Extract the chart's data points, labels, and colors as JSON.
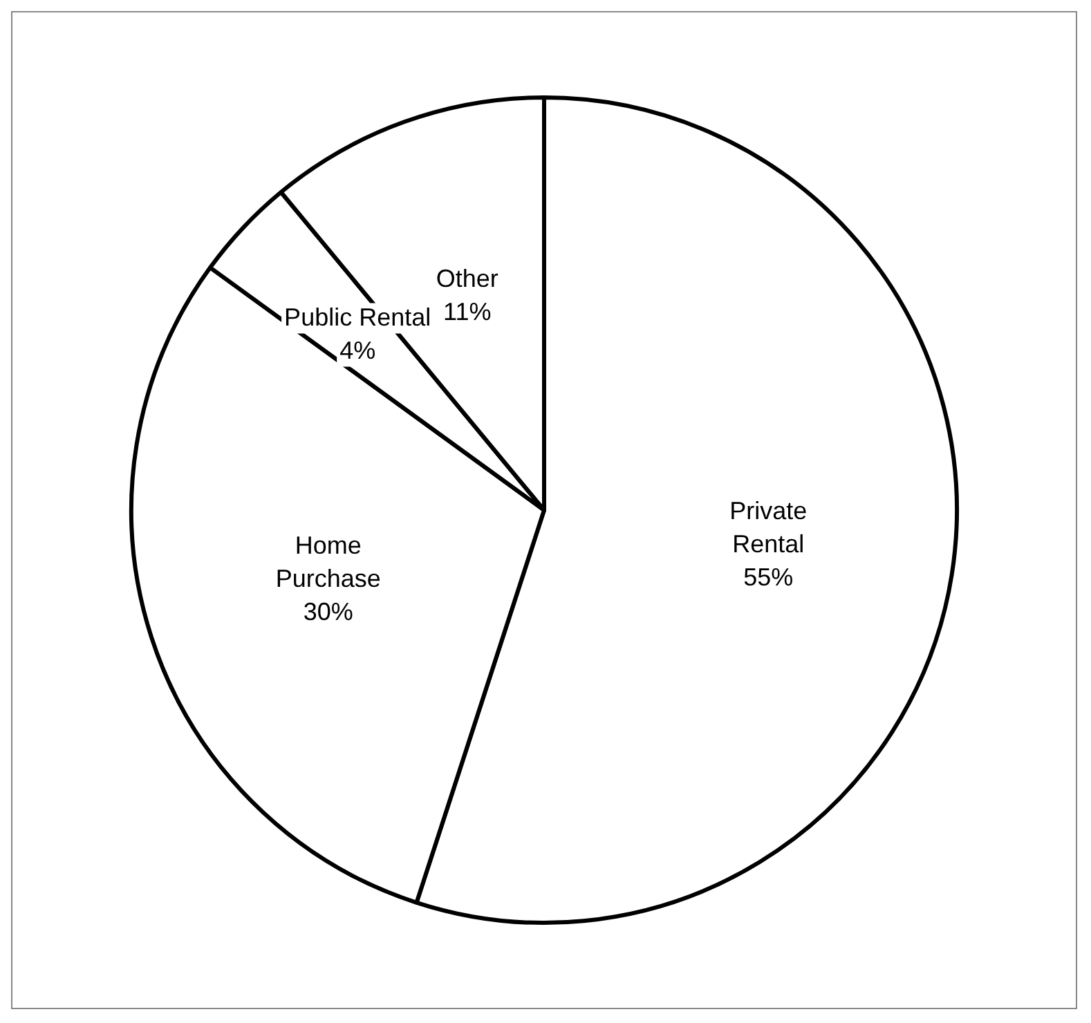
{
  "chart_data": {
    "type": "pie",
    "categories": [
      "Private Rental",
      "Home Purchase",
      "Public Rental",
      "Other"
    ],
    "values": [
      55,
      30,
      4,
      11
    ],
    "value_labels": [
      "55%",
      "30%",
      "4%",
      "11%"
    ],
    "colors": [
      "#ffffff",
      "#ffffff",
      "#ffffff",
      "#ffffff"
    ],
    "legend": false
  }
}
